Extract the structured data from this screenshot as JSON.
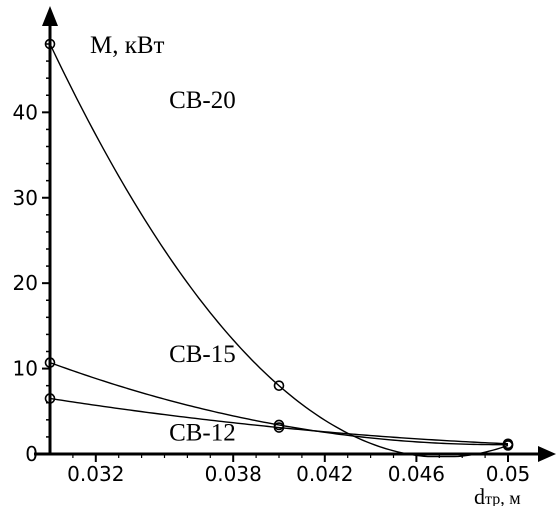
{
  "chart_data": {
    "type": "line",
    "title": "",
    "xlabel": "dтр, м",
    "ylabel": "M, кВт",
    "xlim": [
      0.03,
      0.0505
    ],
    "ylim": [
      0,
      50
    ],
    "x_ticks": [
      0.032,
      0.038,
      0.042,
      0.046,
      0.05
    ],
    "x_tick_labels": [
      "0.032",
      "0.038",
      "0.042",
      "0.046",
      "0.05"
    ],
    "y_ticks": [
      0,
      10,
      20,
      30,
      40
    ],
    "y_tick_labels": [
      "0",
      "10",
      "20",
      "30",
      "40"
    ],
    "grid": false,
    "series": [
      {
        "name": "CB-20",
        "label_at": [
          0.0352,
          40.5
        ],
        "points": [
          [
            0.03,
            48
          ],
          [
            0.04,
            8
          ],
          [
            0.05,
            1
          ]
        ]
      },
      {
        "name": "CB-15",
        "label_at": [
          0.0352,
          10.8
        ],
        "points": [
          [
            0.03,
            10.7
          ],
          [
            0.04,
            3.4
          ],
          [
            0.05,
            1.1
          ]
        ]
      },
      {
        "name": "CB-12",
        "label_at": [
          0.0352,
          1.6
        ],
        "points": [
          [
            0.03,
            6.5
          ],
          [
            0.04,
            3.1
          ],
          [
            0.05,
            1.2
          ]
        ]
      }
    ]
  }
}
